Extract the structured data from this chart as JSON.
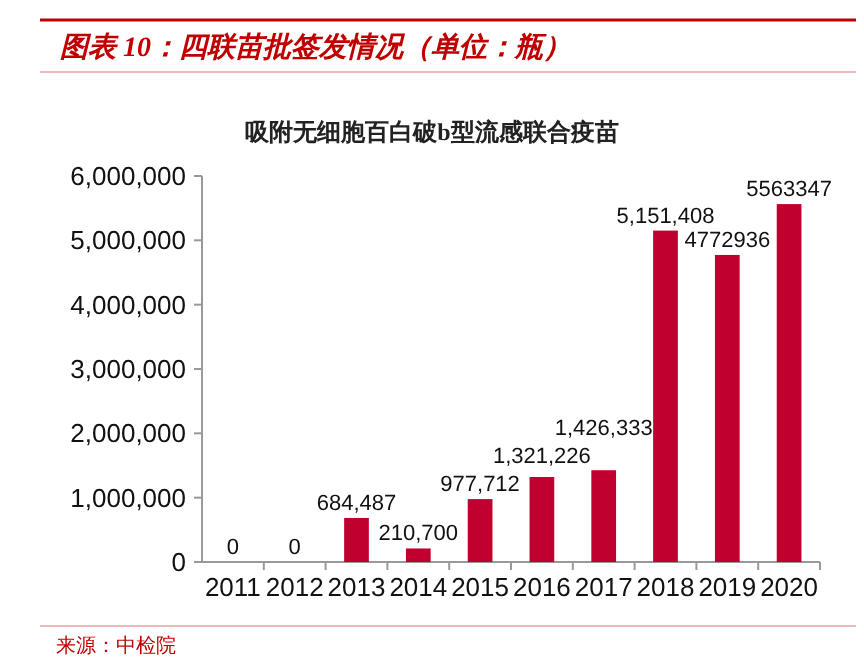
{
  "chart_data": {
    "type": "bar",
    "title": "图表 10：四联苗批签发情况（单位：瓶）",
    "subtitle": "吸附无细胞百白破b型流感联合疫苗",
    "categories": [
      "2011",
      "2012",
      "2013",
      "2014",
      "2015",
      "2016",
      "2017",
      "2018",
      "2019",
      "2020"
    ],
    "values": [
      0,
      0,
      684487,
      210700,
      977712,
      1321226,
      1426333,
      5151408,
      4772936,
      5563347
    ],
    "value_labels": [
      "0",
      "0",
      "684,487",
      "210,700",
      "977,712",
      "1,321,226",
      "1,426,333",
      "5,151,408",
      "4772936",
      "5563347"
    ],
    "color": "#c0002f",
    "ylim": [
      0,
      6000000
    ],
    "yticks": [
      {
        "value": 0,
        "label": "0"
      },
      {
        "value": 1000000,
        "label": "1,000,000"
      },
      {
        "value": 2000000,
        "label": "2,000,000"
      },
      {
        "value": 3000000,
        "label": "3,000,000"
      },
      {
        "value": 4000000,
        "label": "4,000,000"
      },
      {
        "value": 5000000,
        "label": "5,000,000"
      },
      {
        "value": 6000000,
        "label": "6,000,000"
      }
    ],
    "grid": false,
    "annotations": [
      "来源：中检院"
    ]
  }
}
